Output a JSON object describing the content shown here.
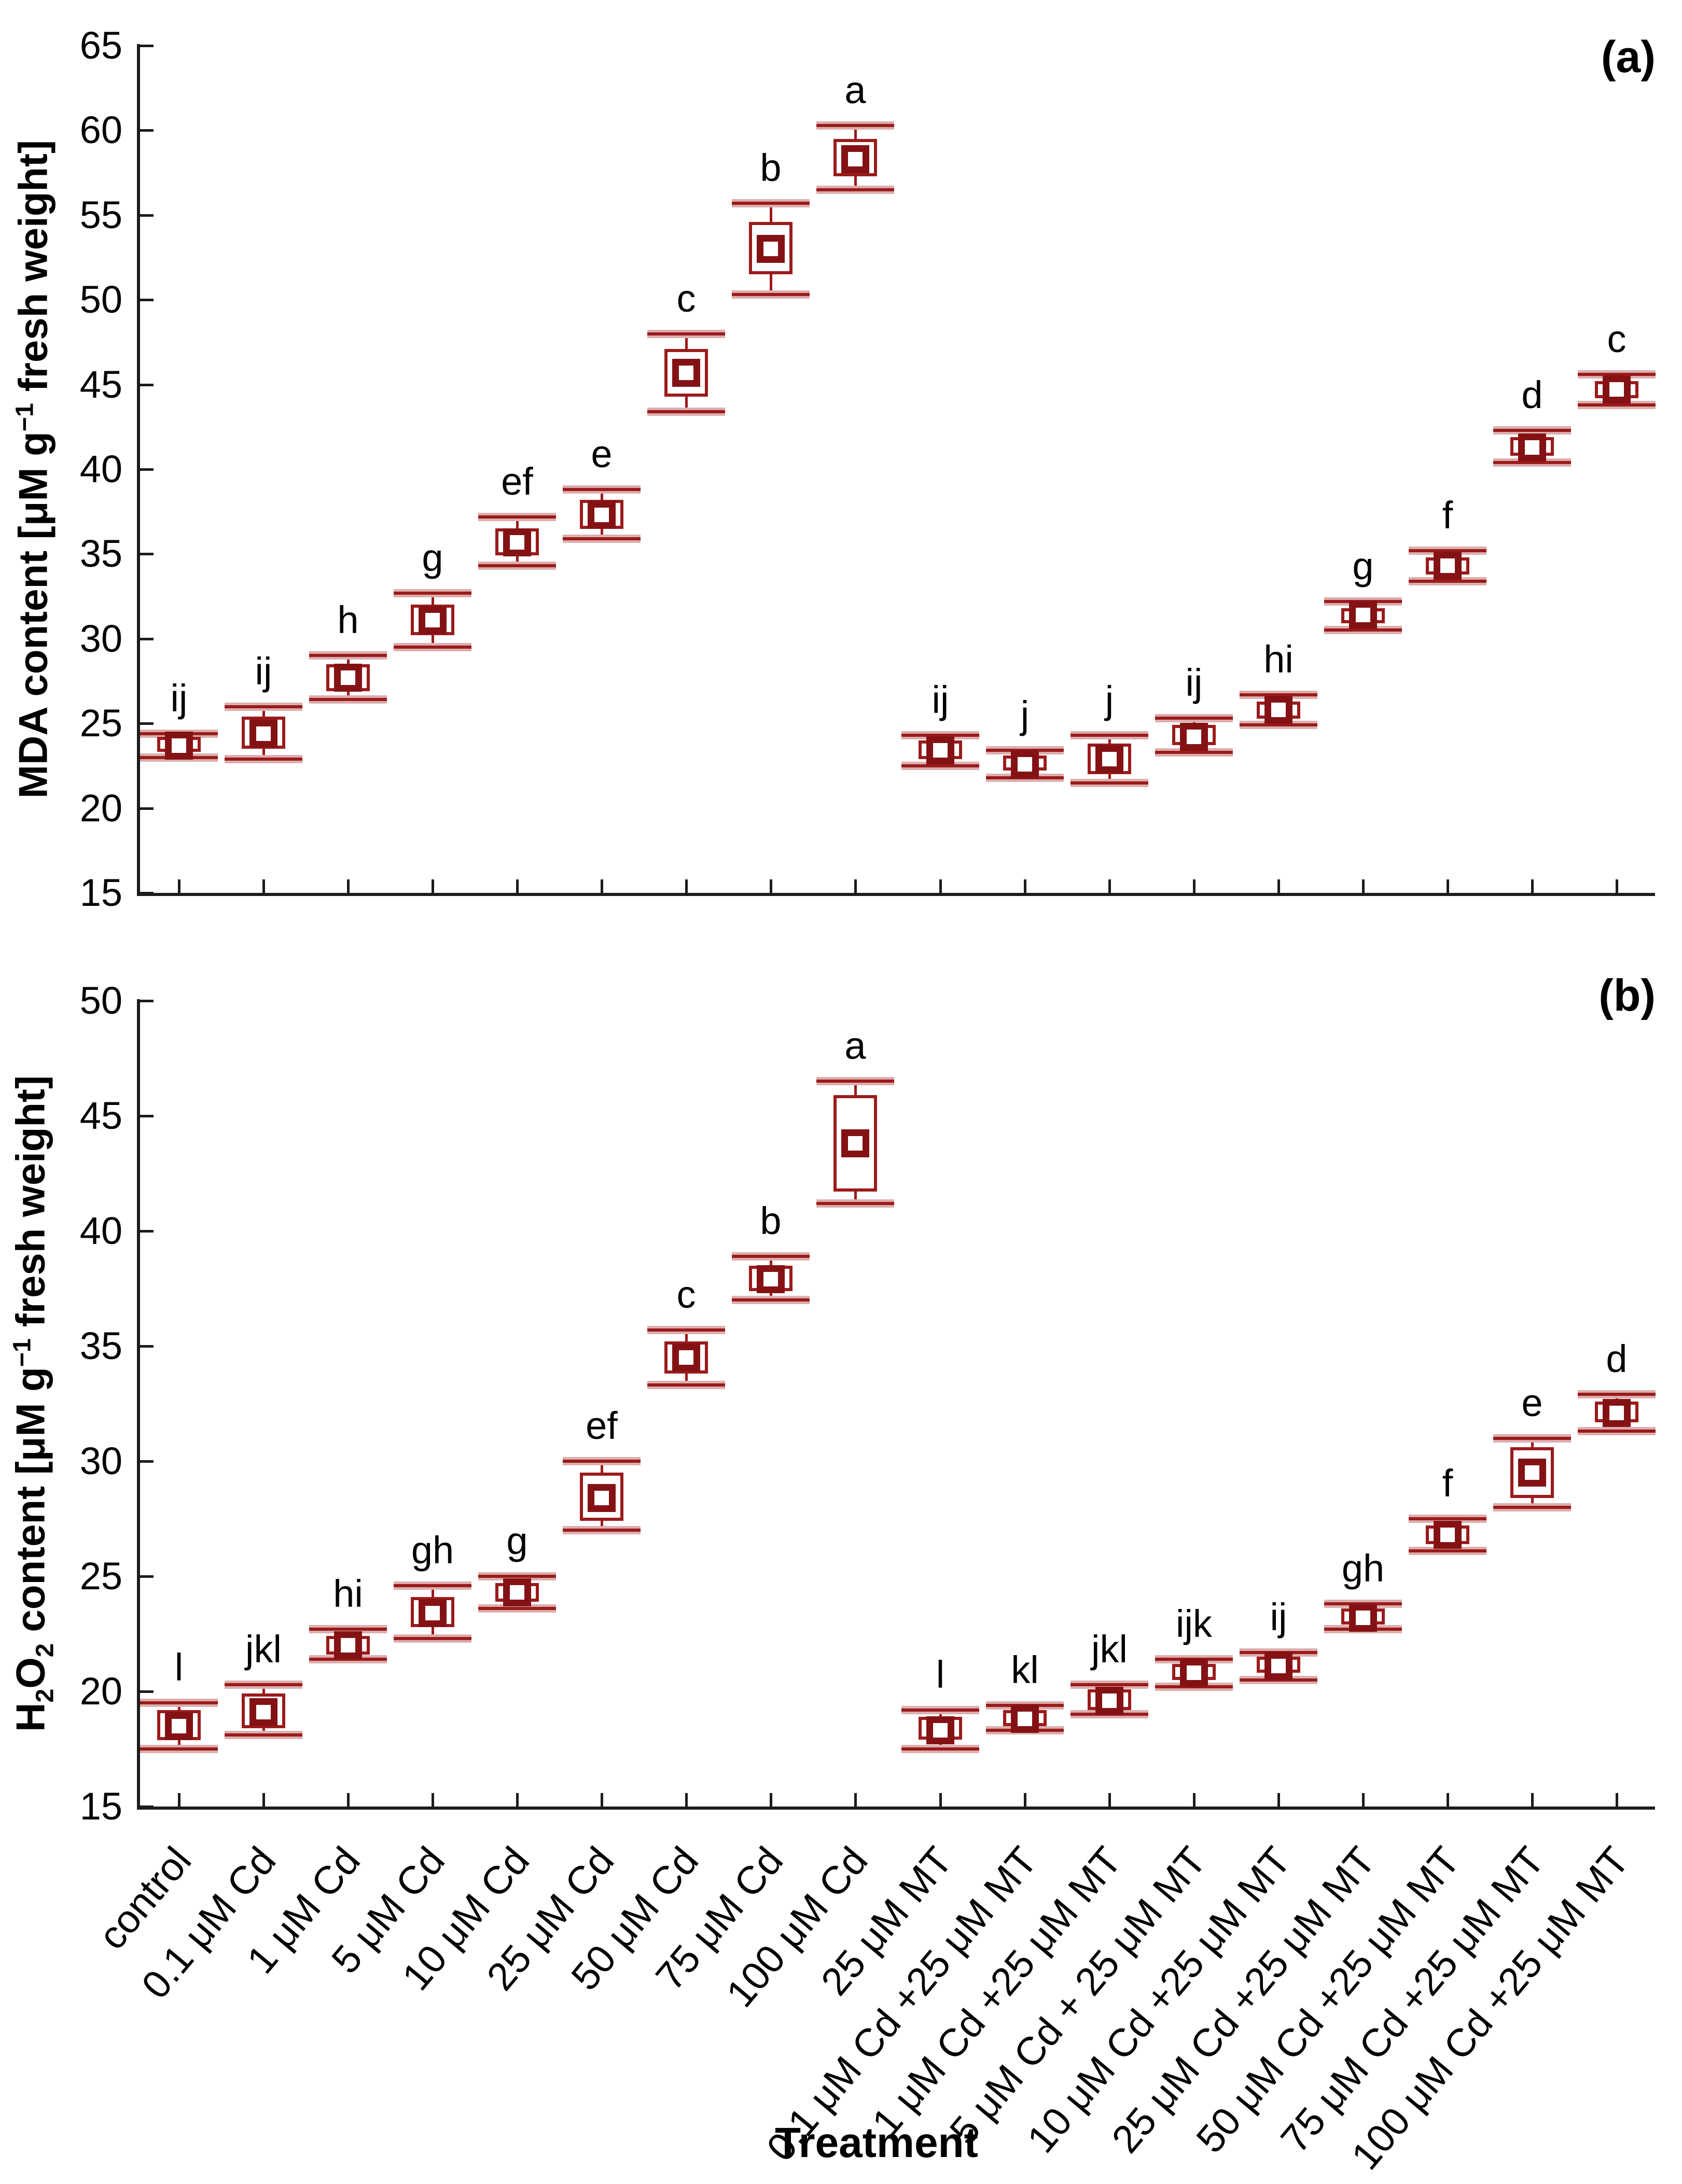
{
  "x_title": "Treatment",
  "colors": {
    "box_line": "#9b1b1b",
    "cap_halo": "#dcaeae",
    "marker_line": "#841215",
    "axis": "#1c1c1c",
    "text": "#000000",
    "background": "#ffffff"
  },
  "chart_data": [
    {
      "type": "box",
      "panel_label": "(a)",
      "ylabel_text": "MDA content [μM g⁻¹ fresh weight]",
      "ylabel_parts": [
        {
          "t": "MDA content [μM g"
        },
        {
          "sup": "−1"
        },
        {
          "t": " fresh weight]"
        }
      ],
      "ylim": [
        15,
        65
      ],
      "ytick_step": 5,
      "x_tick_labels": false,
      "grid": false,
      "categories": [
        "control",
        "0.1 μM Cd",
        "1 μM Cd",
        "5 μM Cd",
        "10 μM Cd",
        "25 μM Cd",
        "50 μM Cd",
        "75 μM Cd",
        "100 μM Cd",
        "25 μM MT",
        "0.1 μM Cd +25 μM MT",
        "1 μM Cd +25 μM MT",
        "5 μM Cd + 25 μM MT",
        "10 μM Cd +25 μM MT",
        "25 μM Cd +25 μM MT",
        "50 μM Cd +25 μM MT",
        "75 μM Cd +25 μM MT",
        "100 μM Cd +25 μM MT"
      ],
      "box_format": [
        "whisker_low",
        "q1",
        "mean",
        "q3",
        "whisker_high"
      ],
      "boxes": [
        [
          23.0,
          23.3,
          23.7,
          24.2,
          24.4
        ],
        [
          22.9,
          23.5,
          24.4,
          25.4,
          26.0
        ],
        [
          26.4,
          26.9,
          27.7,
          28.5,
          29.0
        ],
        [
          29.5,
          30.2,
          31.1,
          32.0,
          32.7
        ],
        [
          34.3,
          34.9,
          35.7,
          36.5,
          37.2
        ],
        [
          35.9,
          36.5,
          37.3,
          38.2,
          38.8
        ],
        [
          43.4,
          44.3,
          45.7,
          47.1,
          48.0
        ],
        [
          50.3,
          51.5,
          53.0,
          54.6,
          55.7
        ],
        [
          56.5,
          57.3,
          58.3,
          59.5,
          60.3
        ],
        [
          22.5,
          22.9,
          23.4,
          24.0,
          24.3
        ],
        [
          21.8,
          22.2,
          22.6,
          23.1,
          23.4
        ],
        [
          21.5,
          22.0,
          22.9,
          23.8,
          24.3
        ],
        [
          23.3,
          23.7,
          24.2,
          24.9,
          25.3
        ],
        [
          24.9,
          25.3,
          25.8,
          26.3,
          26.7
        ],
        [
          30.5,
          30.9,
          31.4,
          31.8,
          32.2
        ],
        [
          33.4,
          33.8,
          34.3,
          34.8,
          35.2
        ],
        [
          40.4,
          40.8,
          41.3,
          41.9,
          42.3
        ],
        [
          43.8,
          44.2,
          44.7,
          45.2,
          45.6
        ]
      ],
      "sig_letters": [
        "ij",
        "ij",
        "h",
        "g",
        "ef",
        "e",
        "c",
        "b",
        "a",
        "ij",
        "j",
        "j",
        "ij",
        "hi",
        "g",
        "f",
        "d",
        "c"
      ]
    },
    {
      "type": "box",
      "panel_label": "(b)",
      "ylabel_text": "H₂O₂ content [μM g⁻¹ fresh weight]",
      "ylabel_parts": [
        {
          "t": "H"
        },
        {
          "sub": "2"
        },
        {
          "t": "O"
        },
        {
          "sub": "2"
        },
        {
          "t": " content [μM g"
        },
        {
          "sup": "−1"
        },
        {
          "t": " fresh weight]"
        }
      ],
      "ylim": [
        15,
        50
      ],
      "ytick_step": 5,
      "x_tick_labels": true,
      "grid": false,
      "categories": [
        "control",
        "0.1 μM Cd",
        "1 μM Cd",
        "5 μM Cd",
        "10 μM Cd",
        "25 μM Cd",
        "50 μM Cd",
        "75 μM Cd",
        "100 μM Cd",
        "25 μM MT",
        "0.1 μM Cd +25 μM MT",
        "1 μM Cd +25 μM MT",
        "5 μM Cd + 25 μM MT",
        "10 μM Cd +25 μM MT",
        "25 μM Cd +25 μM MT",
        "50 μM Cd +25 μM MT",
        "75 μM Cd +25 μM MT",
        "100 μM Cd +25 μM MT"
      ],
      "box_format": [
        "whisker_low",
        "q1",
        "mean",
        "q3",
        "whisker_high"
      ],
      "boxes": [
        [
          17.5,
          17.9,
          18.5,
          19.2,
          19.5
        ],
        [
          18.1,
          18.4,
          19.1,
          19.9,
          20.3
        ],
        [
          21.4,
          21.6,
          22.0,
          22.4,
          22.7
        ],
        [
          22.3,
          22.8,
          23.4,
          24.1,
          24.6
        ],
        [
          23.6,
          23.9,
          24.3,
          24.7,
          25.0
        ],
        [
          27.0,
          27.4,
          28.4,
          29.5,
          30.0
        ],
        [
          33.3,
          33.8,
          34.5,
          35.2,
          35.7
        ],
        [
          37.0,
          37.4,
          37.9,
          38.5,
          38.9
        ],
        [
          41.2,
          41.7,
          43.8,
          45.9,
          46.5
        ],
        [
          17.5,
          17.9,
          18.3,
          18.9,
          19.2
        ],
        [
          18.3,
          18.5,
          18.8,
          19.2,
          19.4
        ],
        [
          19.0,
          19.2,
          19.6,
          20.1,
          20.3
        ],
        [
          20.2,
          20.5,
          20.8,
          21.2,
          21.4
        ],
        [
          20.5,
          20.8,
          21.1,
          21.5,
          21.7
        ],
        [
          22.7,
          22.9,
          23.2,
          23.6,
          23.8
        ],
        [
          26.1,
          26.4,
          26.8,
          27.2,
          27.5
        ],
        [
          28.0,
          28.4,
          29.5,
          30.6,
          31.0
        ],
        [
          31.3,
          31.7,
          32.1,
          32.6,
          32.9
        ]
      ],
      "sig_letters": [
        "l",
        "jkl",
        "hi",
        "gh",
        "g",
        "ef",
        "c",
        "b",
        "a",
        "l",
        "kl",
        "jkl",
        "ijk",
        "ij",
        "gh",
        "f",
        "e",
        "d"
      ]
    }
  ]
}
